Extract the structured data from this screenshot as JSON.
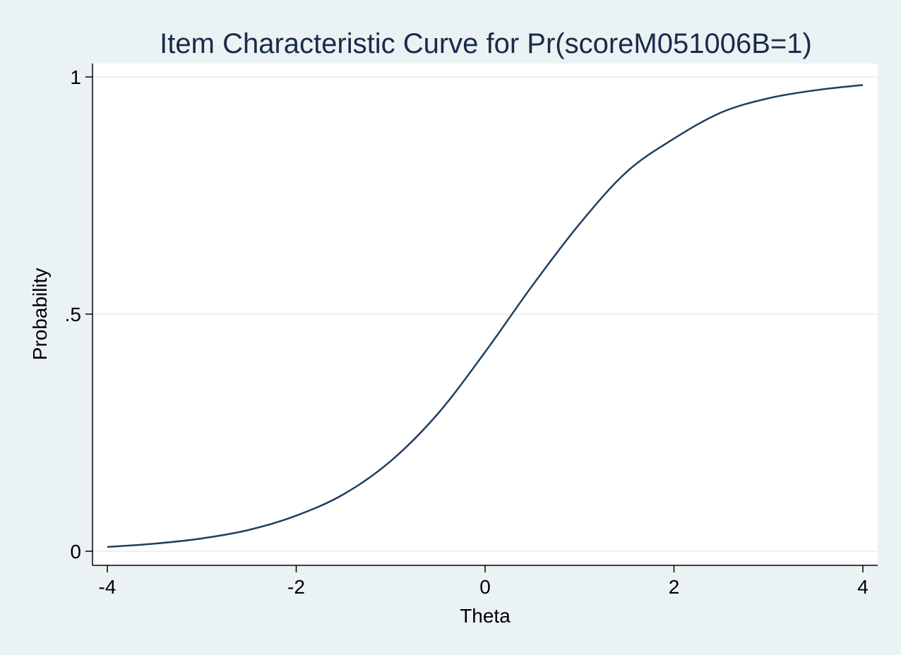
{
  "chart_data": {
    "type": "line",
    "title": "Item Characteristic Curve for Pr(scoreM051006B=1)",
    "xlabel": "Theta",
    "ylabel": "Probability",
    "xlim": [
      -4,
      4
    ],
    "ylim": [
      0,
      1
    ],
    "x_ticks": [
      {
        "value": -4,
        "label": "-4"
      },
      {
        "value": -2,
        "label": "-2"
      },
      {
        "value": 0,
        "label": "0"
      },
      {
        "value": 2,
        "label": "2"
      },
      {
        "value": 4,
        "label": "4"
      }
    ],
    "y_ticks": [
      {
        "value": 0,
        "label": "0"
      },
      {
        "value": 0.5,
        "label": ".5"
      },
      {
        "value": 1,
        "label": "1"
      }
    ],
    "grid": "horizontal",
    "legend": "none",
    "series": [
      {
        "x": [
          -4,
          -3.5,
          -3,
          -2.5,
          -2,
          -1.5,
          -1,
          -0.5,
          0,
          0.5,
          1,
          1.5,
          2,
          2.5,
          3,
          3.5,
          4
        ],
        "y": [
          0.009,
          0.016,
          0.027,
          0.045,
          0.075,
          0.12,
          0.19,
          0.29,
          0.42,
          0.56,
          0.69,
          0.8,
          0.87,
          0.925,
          0.955,
          0.972,
          0.983
        ],
        "color": "#1f3f5f"
      }
    ],
    "colors": {
      "background": "#eaf2f3",
      "plot_background": "#ffffff",
      "gridline": "#eaf2f3",
      "line": "#1f3f5f",
      "title": "#1a2b4a"
    }
  }
}
